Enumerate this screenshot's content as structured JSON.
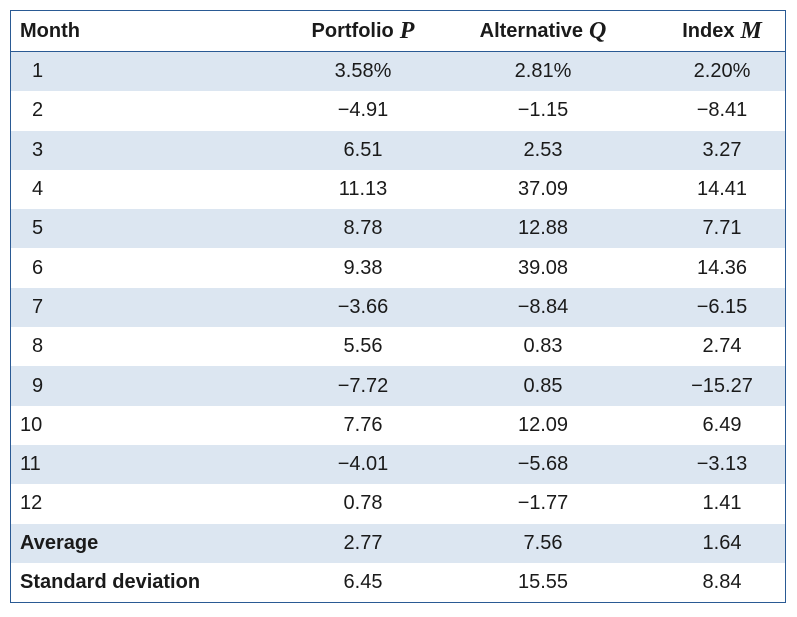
{
  "table": {
    "headers": {
      "month": "Month",
      "portfolio": "Portfolio",
      "portfolio_symbol": "P",
      "alternative": "Alternative",
      "alternative_symbol": "Q",
      "index": "Index",
      "index_symbol": "M"
    },
    "rows": [
      {
        "month": "1",
        "p": "3.58%",
        "q": "2.81%",
        "m": "2.20%"
      },
      {
        "month": "2",
        "p": "−4.91",
        "q": "−1.15",
        "m": "−8.41"
      },
      {
        "month": "3",
        "p": "6.51",
        "q": "2.53",
        "m": "3.27"
      },
      {
        "month": "4",
        "p": "11.13",
        "q": "37.09",
        "m": "14.41"
      },
      {
        "month": "5",
        "p": "8.78",
        "q": "12.88",
        "m": "7.71"
      },
      {
        "month": "6",
        "p": "9.38",
        "q": "39.08",
        "m": "14.36"
      },
      {
        "month": "7",
        "p": "−3.66",
        "q": "−8.84",
        "m": "−6.15"
      },
      {
        "month": "8",
        "p": "5.56",
        "q": "0.83",
        "m": "2.74"
      },
      {
        "month": "9",
        "p": "−7.72",
        "q": "0.85",
        "m": "−15.27"
      },
      {
        "month": "10",
        "p": "7.76",
        "q": "12.09",
        "m": "6.49"
      },
      {
        "month": "11",
        "p": "−4.01",
        "q": "−5.68",
        "m": "−3.13"
      },
      {
        "month": "12",
        "p": "0.78",
        "q": "−1.77",
        "m": "1.41"
      }
    ],
    "summary": [
      {
        "label": "Average",
        "p": "2.77",
        "q": "7.56",
        "m": "1.64"
      },
      {
        "label": "Standard deviation",
        "p": "6.45",
        "q": "15.55",
        "m": "8.84"
      }
    ],
    "colors": {
      "border": "#2a5a94",
      "stripe": "#dce6f1",
      "text": "#1a1a1a"
    }
  }
}
